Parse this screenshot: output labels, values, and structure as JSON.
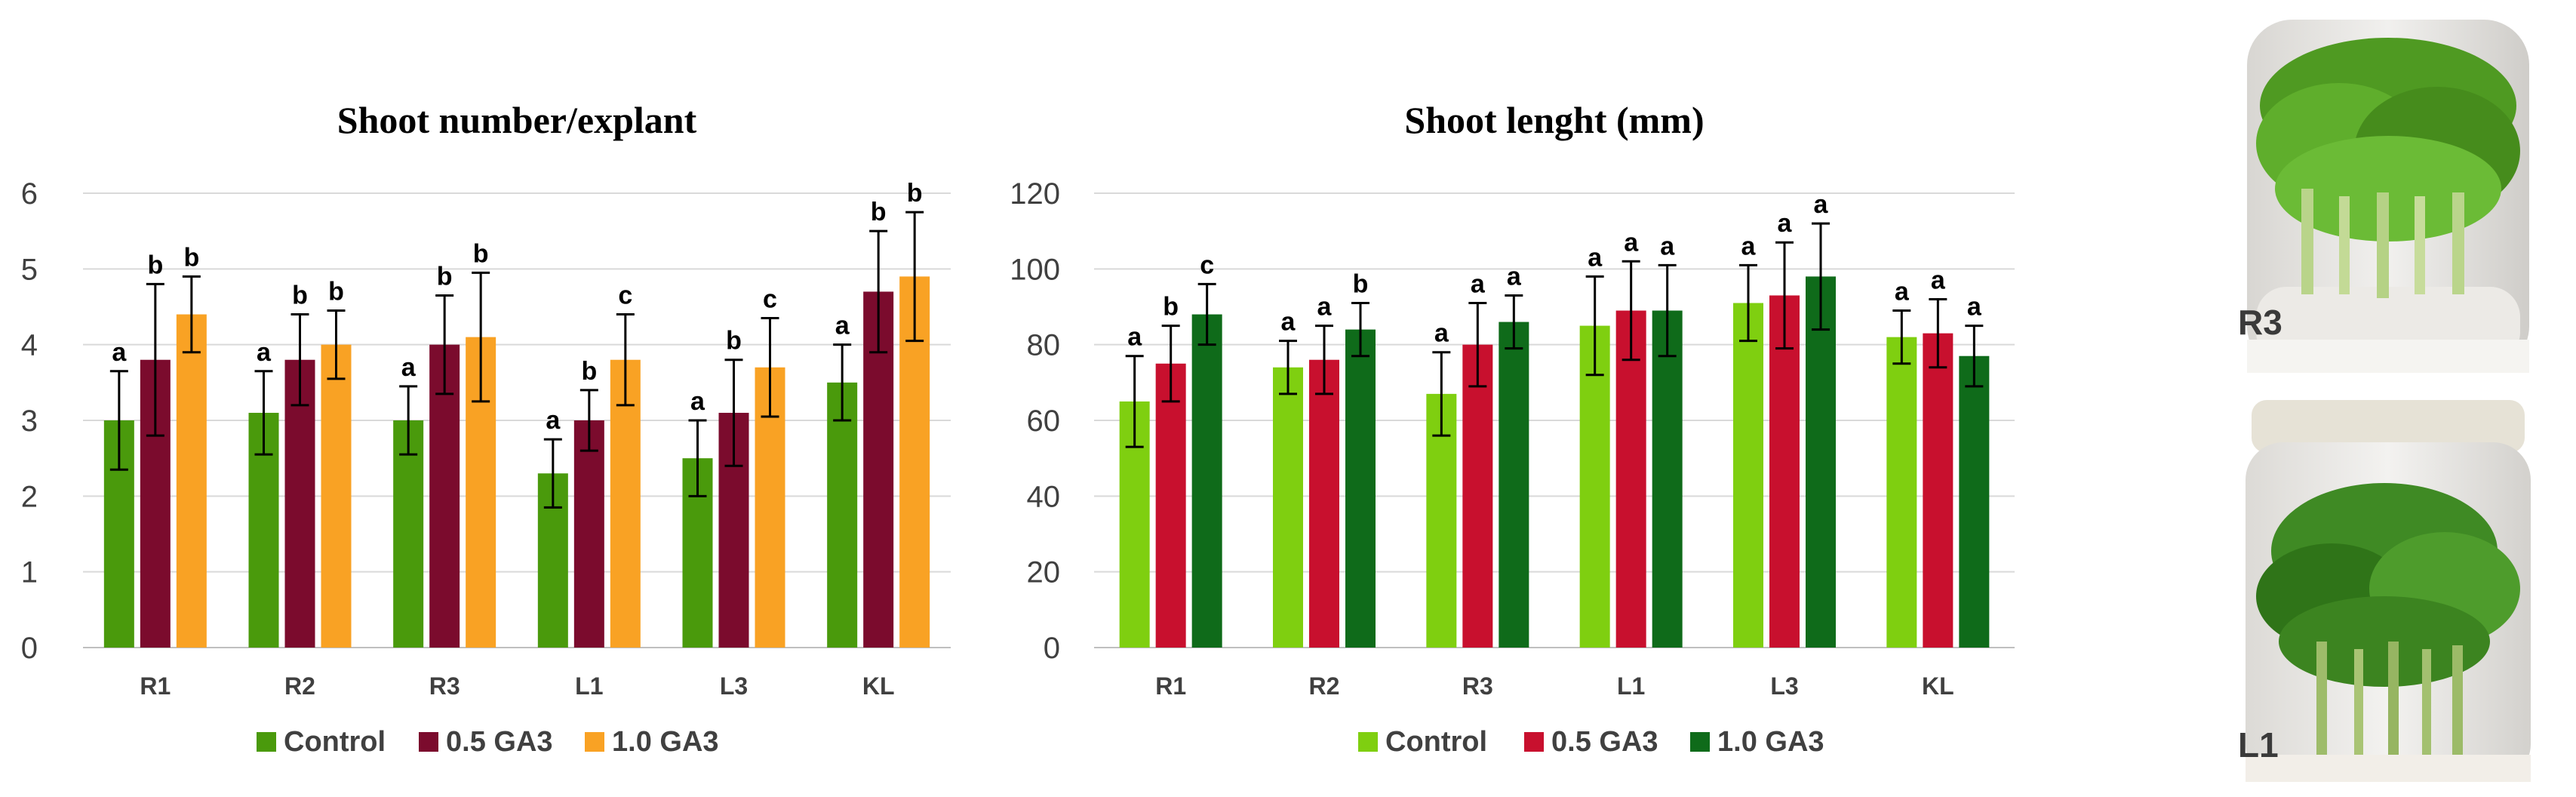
{
  "chart_data": [
    {
      "type": "bar",
      "title": "Shoot number/explant",
      "xlabel": "",
      "ylabel": "",
      "ylim": [
        0,
        6
      ],
      "yticks": [
        0,
        1,
        2,
        3,
        4,
        5,
        6
      ],
      "grid": true,
      "legend": "bottom",
      "categories": [
        "R1",
        "R2",
        "R3",
        "L1",
        "L3",
        "KL"
      ],
      "series": [
        {
          "name": "Control",
          "color": "#4a9a0c",
          "values": [
            3.0,
            3.1,
            3.0,
            2.3,
            2.5,
            3.5
          ],
          "errors": [
            0.65,
            0.55,
            0.45,
            0.45,
            0.5,
            0.5
          ],
          "letters": [
            "a",
            "a",
            "a",
            "a",
            "a",
            "a"
          ]
        },
        {
          "name": "0.5 GA3",
          "color": "#7b0b2d",
          "values": [
            3.8,
            3.8,
            4.0,
            3.0,
            3.1,
            4.7
          ],
          "errors": [
            1.0,
            0.6,
            0.65,
            0.4,
            0.7,
            0.8
          ],
          "letters": [
            "b",
            "b",
            "b",
            "b",
            "b",
            "b"
          ]
        },
        {
          "name": "1.0 GA3",
          "color": "#f9a224",
          "values": [
            4.4,
            4.0,
            4.1,
            3.8,
            3.7,
            4.9
          ],
          "errors": [
            0.5,
            0.45,
            0.85,
            0.6,
            0.65,
            0.85
          ],
          "letters": [
            "b",
            "b",
            "b",
            "c",
            "c",
            "b"
          ]
        }
      ]
    },
    {
      "type": "bar",
      "title": "Shoot lenght (mm)",
      "xlabel": "",
      "ylabel": "",
      "ylim": [
        0,
        120
      ],
      "yticks": [
        0,
        20,
        40,
        60,
        80,
        100,
        120
      ],
      "grid": true,
      "legend": "bottom",
      "categories": [
        "R1",
        "R2",
        "R3",
        "L1",
        "L3",
        "KL"
      ],
      "series": [
        {
          "name": "Control",
          "color": "#7fcf10",
          "values": [
            65,
            74,
            67,
            85,
            91,
            82
          ],
          "errors": [
            12,
            7,
            11,
            13,
            10,
            7
          ],
          "letters": [
            "a",
            "a",
            "a",
            "a",
            "a",
            "a"
          ]
        },
        {
          "name": "0.5 GA3",
          "color": "#c8102e",
          "values": [
            75,
            76,
            80,
            89,
            93,
            83
          ],
          "errors": [
            10,
            9,
            11,
            13,
            14,
            9
          ],
          "letters": [
            "b",
            "a",
            "a",
            "a",
            "a",
            "a"
          ]
        },
        {
          "name": "1.0 GA3",
          "color": "#0f6b1a",
          "values": [
            88,
            84,
            86,
            89,
            98,
            77
          ],
          "errors": [
            8,
            7,
            7,
            12,
            14,
            8
          ],
          "letters": [
            "c",
            "b",
            "a",
            "a",
            "a",
            "a"
          ]
        }
      ]
    }
  ],
  "photos": [
    {
      "label": "R3"
    },
    {
      "label": "L1"
    }
  ]
}
